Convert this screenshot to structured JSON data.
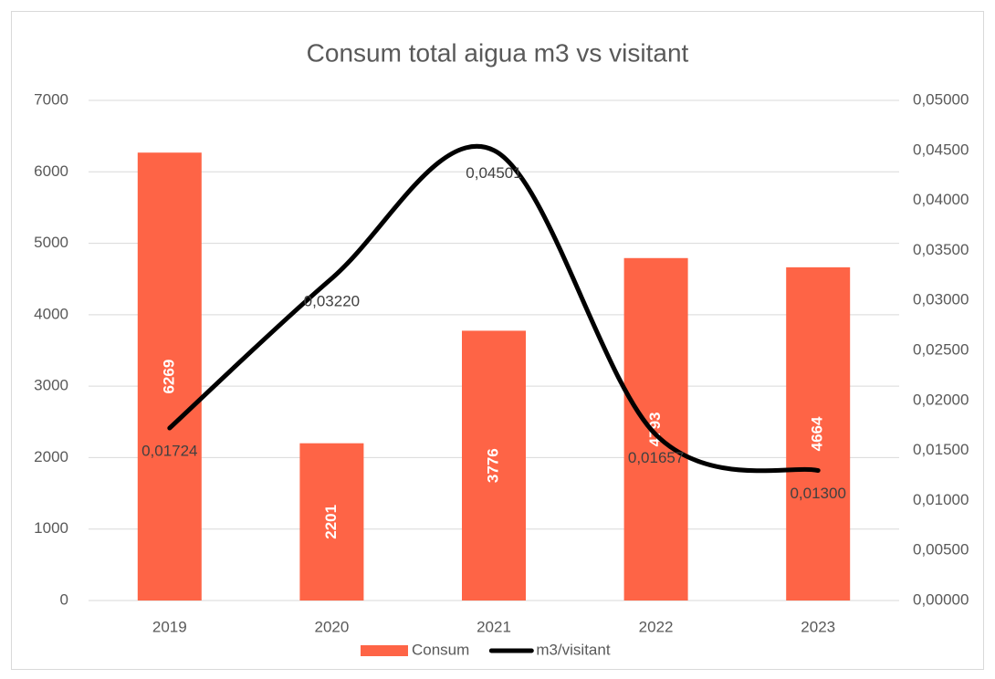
{
  "chart_data": {
    "type": "bar",
    "title": "Consum total aigua m3 vs visitant",
    "categories": [
      "2019",
      "2020",
      "2021",
      "2022",
      "2023"
    ],
    "series": [
      {
        "name": "Consum",
        "type": "bar",
        "color": "#fe6446",
        "values": [
          6269,
          2201,
          3776,
          4793,
          4664
        ]
      },
      {
        "name": "m3/visitant",
        "type": "line",
        "axis": "y2",
        "color": "#000000",
        "smooth": true,
        "values": [
          0.01724,
          0.0322,
          0.04501,
          0.01657,
          0.013
        ],
        "value_labels": [
          "0,01724",
          "0,03220",
          "0,04501",
          "0,01657",
          "0,01300"
        ]
      }
    ],
    "ylim": [
      0,
      7000
    ],
    "yticks": [
      0,
      1000,
      2000,
      3000,
      4000,
      5000,
      6000,
      7000
    ],
    "y2lim": [
      0,
      0.05
    ],
    "y2ticks": [
      {
        "value": 0,
        "label": "0,00000"
      },
      {
        "value": 0.005,
        "label": "0,00500"
      },
      {
        "value": 0.01,
        "label": "0,01000"
      },
      {
        "value": 0.015,
        "label": "0,01500"
      },
      {
        "value": 0.02,
        "label": "0,02000"
      },
      {
        "value": 0.025,
        "label": "0,02500"
      },
      {
        "value": 0.03,
        "label": "0,03000"
      },
      {
        "value": 0.035,
        "label": "0,03500"
      },
      {
        "value": 0.04,
        "label": "0,04000"
      },
      {
        "value": 0.045,
        "label": "0,04500"
      },
      {
        "value": 0.05,
        "label": "0,05000"
      }
    ],
    "grid": true,
    "legend": "bottom"
  }
}
